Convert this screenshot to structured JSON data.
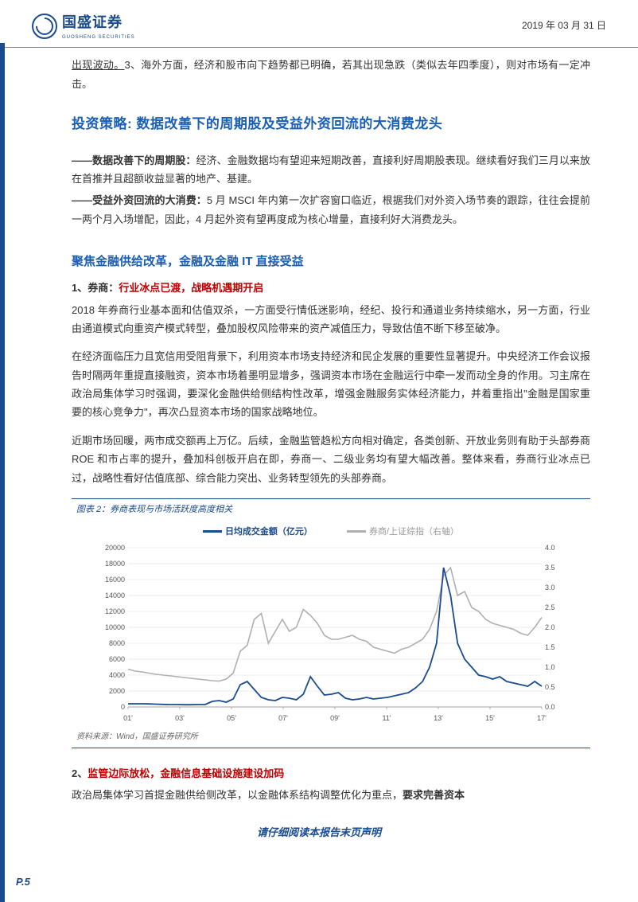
{
  "header": {
    "company_cn": "国盛证券",
    "company_en": "GUOSHENG SECURITIES",
    "date": "2019 年 03 月 31 日"
  },
  "intro_para": {
    "underlined": "出现波动。",
    "rest": "3、海外方面，经济和股市向下趋势都已明确，若其出现急跌（类似去年四季度），则对市场有一定冲击。"
  },
  "h1": "投资策略: 数据改善下的周期股及受益外资回流的大消费龙头",
  "para1": {
    "lead": "——数据改善下的周期股：",
    "body": "经济、金融数据均有望迎来短期改善，直接利好周期股表现。继续看好我们三月以来放在首推并且超额收益显著的地产、基建。"
  },
  "para2": {
    "lead": "——受益外资回流的大消费：",
    "body": "5 月 MSCI 年内第一次扩容窗口临近，根据我们对外资入场节奏的跟踪，往往会提前一两个月入场增配，因此，4 月起外资有望再度成为核心增量，直接利好大消费龙头。"
  },
  "h2": "聚焦金融供给改革，金融及金融 IT 直接受益",
  "sec1": {
    "num": "1、券商：",
    "red": "行业冰点已渡，战略机遇期开启",
    "p1": "2018 年券商行业基本面和估值双杀，一方面受行情低迷影响，经纪、投行和通道业务持续缩水，另一方面，行业由通道模式向重资产模式转型，叠加股权风险带来的资产减值压力，导致估值不断下移至破净。",
    "p2": "在经济面临压力且宽信用受阻背景下，利用资本市场支持经济和民企发展的重要性显著提升。中央经济工作会议报告时隔两年重提直接融资，资本市场着墨明显增多，强调资本市场在金融运行中牵一发而动全身的作用。习主席在政治局集体学习时强调，要深化金融供给侧结构性改革，增强金融服务实体经济能力，并着重指出\"金融是国家重要的核心竞争力\"，再次凸显资本市场的国家战略地位。",
    "p3": "近期市场回暖，两市成交额再上万亿。后续，金融监管趋松方向相对确定，各类创新、开放业务则有助于头部券商 ROE 和市占率的提升，叠加科创板开启在即，券商一、二级业务均有望大幅改善。整体来看，券商行业冰点已过，战略性看好估值底部、综合能力突出、业务转型领先的头部券商。"
  },
  "chart": {
    "title": "图表 2：券商表现与市场活跃度高度相关",
    "legend1": "日均成交金额（亿元）",
    "legend2": "券商/上证综指（右轴）",
    "source": "资料来源：Wind，国盛证券研究所",
    "x_labels": [
      "01'",
      "03'",
      "05'",
      "07'",
      "09'",
      "11'",
      "13'",
      "15'",
      "17'"
    ],
    "y_left": {
      "min": 0,
      "max": 20000,
      "step": 2000,
      "ticks": [
        "0",
        "2000",
        "4000",
        "6000",
        "8000",
        "10000",
        "12000",
        "14000",
        "16000",
        "18000",
        "20000"
      ]
    },
    "y_right": {
      "min": 0,
      "max": 4.0,
      "step": 0.5,
      "ticks": [
        "0.0",
        "0.5",
        "1.0",
        "1.5",
        "2.0",
        "2.5",
        "3.0",
        "3.5",
        "4.0"
      ]
    },
    "series1_color": "#1a4b8e",
    "series2_color": "#b0b0b0",
    "grid_color": "#d8d8d8",
    "bg": "#ffffff",
    "series1": [
      400,
      400,
      400,
      380,
      350,
      320,
      300,
      300,
      280,
      280,
      300,
      300,
      700,
      800,
      600,
      1000,
      2800,
      3200,
      2200,
      1200,
      900,
      800,
      1200,
      1100,
      900,
      1600,
      3800,
      2600,
      1500,
      1600,
      1800,
      1100,
      900,
      1000,
      1200,
      1000,
      1100,
      1200,
      1400,
      1600,
      1800,
      2400,
      3200,
      5000,
      8000,
      17500,
      14000,
      8000,
      6000,
      5000,
      4000,
      3800,
      3500,
      3800,
      3200,
      3000,
      2800,
      2600,
      3200,
      2600
    ],
    "series2": [
      0.95,
      0.9,
      0.88,
      0.85,
      0.82,
      0.8,
      0.78,
      0.76,
      0.74,
      0.72,
      0.7,
      0.68,
      0.66,
      0.65,
      0.7,
      0.85,
      1.4,
      1.55,
      2.2,
      2.35,
      1.6,
      1.9,
      2.2,
      1.9,
      2.0,
      2.45,
      2.3,
      2.1,
      1.8,
      1.7,
      1.7,
      1.75,
      1.8,
      1.7,
      1.65,
      1.5,
      1.45,
      1.4,
      1.35,
      1.45,
      1.5,
      1.6,
      1.7,
      1.95,
      2.4,
      3.3,
      3.5,
      2.8,
      2.9,
      2.5,
      2.4,
      2.2,
      2.1,
      2.05,
      2.0,
      1.95,
      1.85,
      1.8,
      2.0,
      2.25
    ]
  },
  "sec2": {
    "num": "2、",
    "red": "监管边际放松，金融信息基础设施建设加码",
    "p1_a": "政治局集体学习首提金融供给侧改革，以金融体系结构调整优化为重点，",
    "p1_b": "要求完善资本"
  },
  "footer": "请仔细阅读本报告末页声明",
  "page_num": "P.5"
}
